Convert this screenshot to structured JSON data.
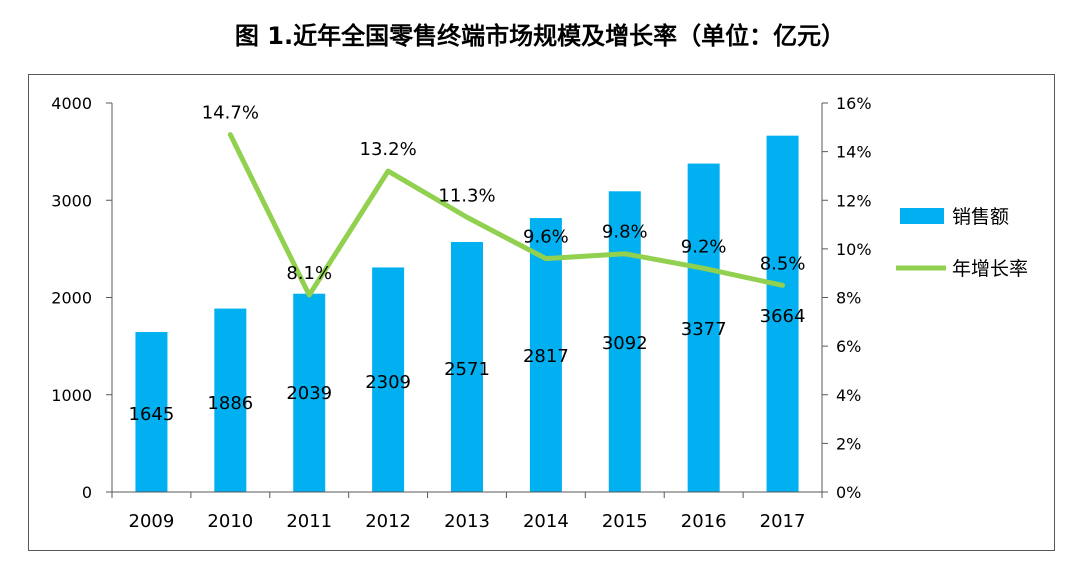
{
  "chart_data": {
    "type": "bar+line",
    "title": "图 1.近年全国零售终端市场规模及增长率（单位：亿元）",
    "categories": [
      "2009",
      "2010",
      "2011",
      "2012",
      "2013",
      "2014",
      "2015",
      "2016",
      "2017"
    ],
    "series": [
      {
        "name": "销售额",
        "type": "bar",
        "axis": "left",
        "color": "#00b0f0",
        "values": [
          1645,
          1886,
          2039,
          2309,
          2571,
          2817,
          3092,
          3377,
          3664
        ],
        "labels": [
          "1645",
          "1886",
          "2039",
          "2309",
          "2571",
          "2817",
          "3092",
          "3377",
          "3664"
        ]
      },
      {
        "name": "年增长率",
        "type": "line",
        "axis": "right",
        "color": "#92d050",
        "values": [
          null,
          14.7,
          8.1,
          13.2,
          11.3,
          9.6,
          9.8,
          9.2,
          8.5
        ],
        "labels": [
          "",
          "14.7%",
          "8.1%",
          "13.2%",
          "11.3%",
          "9.6%",
          "9.8%",
          "9.2%",
          "8.5%"
        ]
      }
    ],
    "y_left": {
      "min": 0,
      "max": 4000,
      "ticks": [
        "0",
        "1000",
        "2000",
        "3000",
        "4000"
      ]
    },
    "y_right": {
      "min": 0,
      "max": 16,
      "ticks": [
        "0%",
        "2%",
        "4%",
        "6%",
        "8%",
        "10%",
        "12%",
        "14%",
        "16%"
      ]
    },
    "legend": {
      "position": "right",
      "items": [
        "销售额",
        "年增长率"
      ]
    },
    "grid": false
  }
}
